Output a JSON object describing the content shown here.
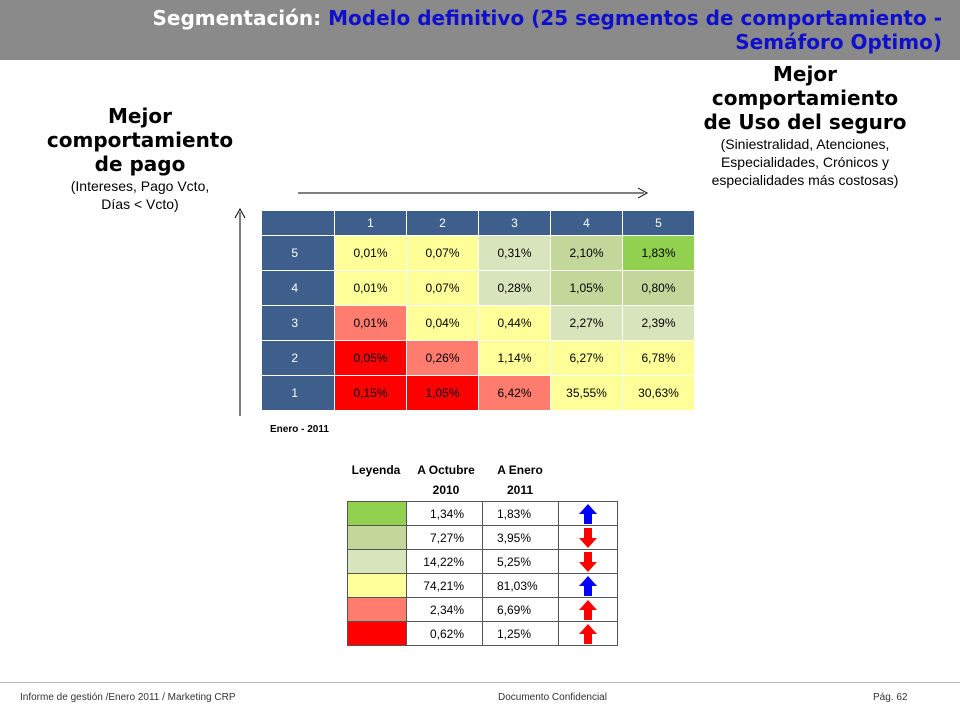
{
  "title": {
    "prefix": "Segmentación:",
    "main": "Modelo definitivo (25 segmentos de comportamiento - Semáforo Optimo)"
  },
  "left_header": {
    "line1": "Mejor",
    "line2": "comportamiento",
    "line3": "de pago",
    "detail1": "(Intereses, Pago Vcto,",
    "detail2": "Días < Vcto)"
  },
  "right_header": {
    "line1": "Mejor",
    "line2": "comportamiento",
    "line3": "de Uso del seguro",
    "detail1": "(Siniestralidad, Atenciones,",
    "detail2": "Especialidades, Crónicos y",
    "detail3": "especialidades más costosas)"
  },
  "matrix": {
    "columns": [
      "1",
      "2",
      "3",
      "4",
      "5"
    ],
    "rows": [
      {
        "label": "5",
        "values": [
          "0,01%",
          "0,07%",
          "0,31%",
          "2,10%",
          "1,83%"
        ],
        "colors": [
          "#ffff99",
          "#ffff99",
          "#d8e4bc",
          "#c4d79b",
          "#92d050"
        ]
      },
      {
        "label": "4",
        "values": [
          "0,01%",
          "0,07%",
          "0,28%",
          "1,05%",
          "0,80%"
        ],
        "colors": [
          "#ffff99",
          "#ffff99",
          "#d8e4bc",
          "#c4d79b",
          "#c4d79b"
        ]
      },
      {
        "label": "3",
        "values": [
          "0,01%",
          "0,04%",
          "0,44%",
          "2,27%",
          "2,39%"
        ],
        "colors": [
          "#ff7c6e",
          "#ffff99",
          "#ffff99",
          "#d8e4bc",
          "#d8e4bc"
        ]
      },
      {
        "label": "2",
        "values": [
          "0,05%",
          "0,26%",
          "1,14%",
          "6,27%",
          "6,78%"
        ],
        "colors": [
          "#ff0000",
          "#ff7c6e",
          "#ffff99",
          "#ffff99",
          "#ffff99"
        ]
      },
      {
        "label": "1",
        "values": [
          "0,15%",
          "1,05%",
          "6,42%",
          "35,55%",
          "30,63%"
        ],
        "colors": [
          "#ff0000",
          "#ff0000",
          "#ff7c6e",
          "#ffff99",
          "#ffff99"
        ]
      }
    ],
    "note": "Enero - 2011"
  },
  "legend": {
    "title": "Leyenda",
    "col1": "A Octubre",
    "col1b": "2010",
    "col2": "A Enero",
    "col2b": "2011",
    "rows": [
      {
        "color": "#92d050",
        "oct": "1,34%",
        "ene": "1,83%",
        "trend": "up",
        "arrow_color": "#0000ff"
      },
      {
        "color": "#c4d79b",
        "oct": "7,27%",
        "ene": "3,95%",
        "trend": "down",
        "arrow_color": "#ff0000"
      },
      {
        "color": "#d8e4bc",
        "oct": "14,22%",
        "ene": "5,25%",
        "trend": "down",
        "arrow_color": "#ff0000"
      },
      {
        "color": "#ffff99",
        "oct": "74,21%",
        "ene": "81,03%",
        "trend": "up",
        "arrow_color": "#0000ff"
      },
      {
        "color": "#ff7c6e",
        "oct": "2,34%",
        "ene": "6,69%",
        "trend": "up",
        "arrow_color": "#ff0000"
      },
      {
        "color": "#ff0000",
        "oct": "0,62%",
        "ene": "1,25%",
        "trend": "up",
        "arrow_color": "#ff0000"
      }
    ]
  },
  "footer": {
    "left": "Informe de gestión /Enero 2011 / Marketing CRP",
    "center": "Documento Confidencial",
    "right": "Pág. 62"
  }
}
